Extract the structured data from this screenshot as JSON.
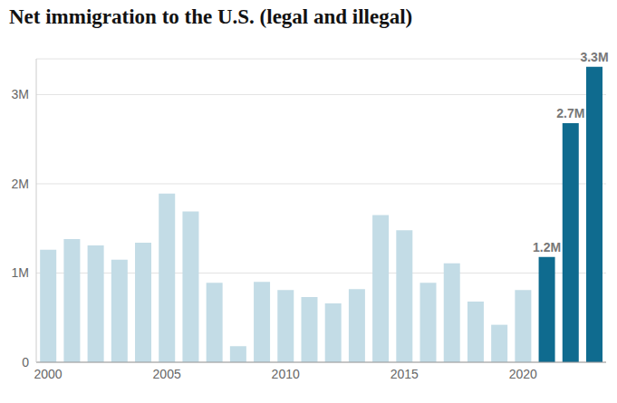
{
  "chart_data": {
    "type": "bar",
    "title": "Net immigration to the U.S. (legal and illegal)",
    "categories": [
      "2000",
      null,
      null,
      null,
      null,
      "2005",
      null,
      null,
      null,
      null,
      "2010",
      null,
      null,
      null,
      null,
      "2015",
      null,
      null,
      null,
      null,
      "2020",
      null,
      null,
      null
    ],
    "values": [
      1260000,
      1380000,
      1310000,
      1150000,
      1340000,
      1890000,
      1690000,
      890000,
      180000,
      900000,
      810000,
      730000,
      660000,
      820000,
      1650000,
      1480000,
      890000,
      1110000,
      680000,
      420000,
      810000,
      1180000,
      2680000,
      3310000
    ],
    "value_labels": [
      null,
      null,
      null,
      null,
      null,
      null,
      null,
      null,
      null,
      null,
      null,
      null,
      null,
      null,
      null,
      null,
      null,
      null,
      null,
      null,
      null,
      "1.2M",
      "2.7M",
      "3.3M"
    ],
    "colors": [
      "#c3dce6",
      "#c3dce6",
      "#c3dce6",
      "#c3dce6",
      "#c3dce6",
      "#c3dce6",
      "#c3dce6",
      "#c3dce6",
      "#c3dce6",
      "#c3dce6",
      "#c3dce6",
      "#c3dce6",
      "#c3dce6",
      "#c3dce6",
      "#c3dce6",
      "#c3dce6",
      "#c3dce6",
      "#c3dce6",
      "#c3dce6",
      "#c3dce6",
      "#c3dce6",
      "#0f6b8f",
      "#0f6b8f",
      "#0f6b8f"
    ],
    "ylim": [
      0,
      3400000
    ],
    "yticks": [
      0,
      {
        "value": 1000000,
        "label": "1M"
      },
      {
        "value": 2000000,
        "label": "2M"
      },
      {
        "value": 3000000,
        "label": "3M"
      }
    ],
    "grid": true,
    "data_labels": true
  }
}
